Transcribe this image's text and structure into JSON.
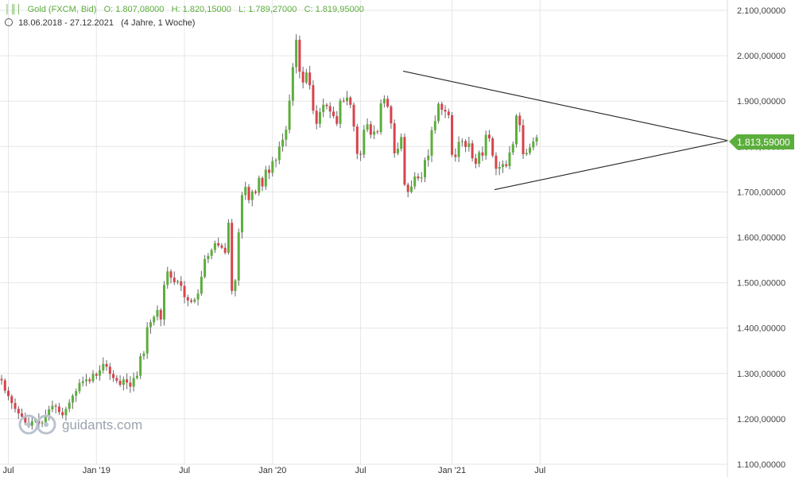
{
  "header": {
    "instrument": "Gold (FXCM, Bid)",
    "open": "O: 1.807,08000",
    "high": "H: 1.820,15000",
    "low": "L: 1.789,27000",
    "close": "C: 1.819,95000",
    "period": "18.06.2018 - 27.12.2021",
    "duration": "(4 Jahre, 1 Woche)"
  },
  "watermark": "guidants.com",
  "current_price_label": "1.813,59000",
  "colors": {
    "up": "#5cae3c",
    "down": "#d8434b",
    "wick": "#666666",
    "grid": "#e6e6e6",
    "price_tag": "#5cae3c"
  },
  "chart_data": {
    "type": "candlestick",
    "interval": "weekly",
    "ylim": [
      1100,
      2100
    ],
    "y_ticks": [
      {
        "value": 1100,
        "label": "1.100,00000"
      },
      {
        "value": 1200,
        "label": "1.200,00000"
      },
      {
        "value": 1300,
        "label": "1.300,00000"
      },
      {
        "value": 1400,
        "label": "1.400,00000"
      },
      {
        "value": 1500,
        "label": "1.500,00000"
      },
      {
        "value": 1600,
        "label": "1.600,00000"
      },
      {
        "value": 1700,
        "label": "1.700,00000"
      },
      {
        "value": 1800,
        "label": "1.800,00000"
      },
      {
        "value": 1900,
        "label": "1.900,00000"
      },
      {
        "value": 2000,
        "label": "2.000,00000"
      },
      {
        "value": 2100,
        "label": "2.100,00000"
      }
    ],
    "x_ticks": [
      {
        "label": "Jul",
        "week": 2
      },
      {
        "label": "Jan '19",
        "week": 28
      },
      {
        "label": "Jul",
        "week": 54
      },
      {
        "label": "Jan '20",
        "week": 80
      },
      {
        "label": "Jul",
        "week": 106
      },
      {
        "label": "Jan '21",
        "week": 133
      },
      {
        "label": "Jul",
        "week": 159
      }
    ],
    "closes": [
      1285,
      1262,
      1250,
      1235,
      1222,
      1212,
      1205,
      1192,
      1185,
      1195,
      1198,
      1190,
      1192,
      1206,
      1221,
      1229,
      1227,
      1215,
      1208,
      1222,
      1236,
      1251,
      1261,
      1279,
      1283,
      1287,
      1283,
      1299,
      1295,
      1307,
      1321,
      1315,
      1299,
      1290,
      1284,
      1275,
      1287,
      1280,
      1271,
      1290,
      1295,
      1338,
      1344,
      1402,
      1413,
      1425,
      1440,
      1419,
      1495,
      1525,
      1511,
      1501,
      1503,
      1493,
      1468,
      1461,
      1458,
      1463,
      1476,
      1513,
      1552,
      1559,
      1572,
      1587,
      1582,
      1577,
      1566,
      1632,
      1482,
      1505,
      1611,
      1693,
      1711,
      1682,
      1701,
      1698,
      1731,
      1712,
      1749,
      1742,
      1768,
      1770,
      1800,
      1815,
      1837,
      1901,
      1975,
      2035,
      1965,
      1941,
      1963,
      1935,
      1879,
      1850,
      1876,
      1892,
      1889,
      1877,
      1867,
      1850,
      1901,
      1900,
      1908,
      1892,
      1844,
      1784,
      1782,
      1837,
      1849,
      1826,
      1833,
      1832,
      1895,
      1905,
      1888,
      1851,
      1785,
      1795,
      1821,
      1716,
      1700,
      1712,
      1734,
      1730,
      1732,
      1770,
      1780,
      1836,
      1856,
      1894,
      1881,
      1877,
      1869,
      1782,
      1777,
      1810,
      1812,
      1799,
      1807,
      1774,
      1762,
      1787,
      1780,
      1826,
      1818,
      1780,
      1751,
      1755,
      1761,
      1757,
      1787,
      1805,
      1868,
      1847,
      1783,
      1786,
      1798,
      1811,
      1820
    ]
  }
}
